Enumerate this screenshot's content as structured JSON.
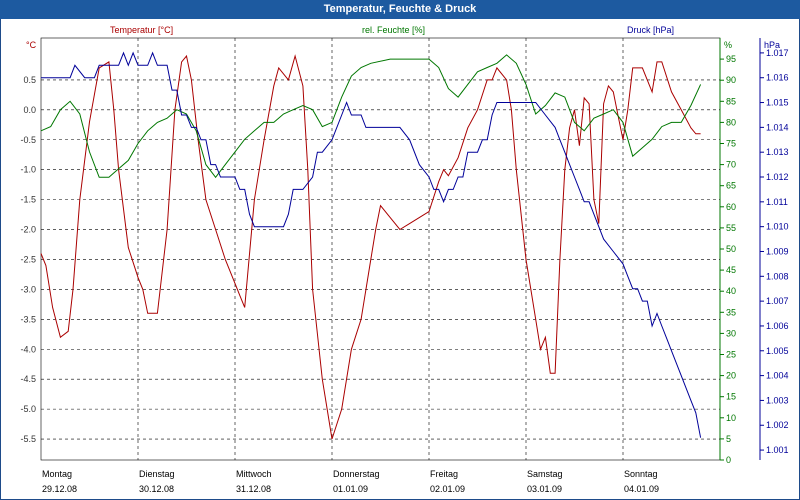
{
  "window": {
    "title": "Temperatur, Feuchte & Druck"
  },
  "chart_data": {
    "type": "line",
    "title": "Temperatur, Feuchte & Druck",
    "x_range": [
      0,
      7
    ],
    "x_days": [
      {
        "day": "Montag",
        "date": "29.12.08"
      },
      {
        "day": "Dienstag",
        "date": "30.12.08"
      },
      {
        "day": "Mittwoch",
        "date": "31.12.08"
      },
      {
        "day": "Donnerstag",
        "date": "01.01.09"
      },
      {
        "day": "Freitag",
        "date": "02.01.09"
      },
      {
        "day": "Samstag",
        "date": "03.01.09"
      },
      {
        "day": "Sonntag",
        "date": "04.01.09"
      }
    ],
    "axes": {
      "temperature": {
        "unit": "°C",
        "min": -5.85,
        "max": 1.2,
        "ticks": [
          "0.5",
          "0.0",
          "-0.5",
          "-1.0",
          "-1.5",
          "-2.0",
          "-2.5",
          "-3.0",
          "-3.5",
          "-4.0",
          "-4.5",
          "-5.0",
          "-5.5"
        ]
      },
      "humidity": {
        "unit": "%",
        "min": 0,
        "max": 100,
        "ticks": [
          "95",
          "90",
          "85",
          "80",
          "75",
          "70",
          "65",
          "60",
          "55",
          "50",
          "45",
          "40",
          "35",
          "30",
          "25",
          "20",
          "15",
          "10",
          "5",
          "0"
        ]
      },
      "pressure": {
        "unit": "hPa",
        "min": 1000.6,
        "max": 1017.6,
        "ticks": [
          "1.017",
          "1.016",
          "1.015",
          "1.014",
          "1.013",
          "1.012",
          "1.011",
          "1.010",
          "1.009",
          "1.008",
          "1.007",
          "1.006",
          "1.005",
          "1.004",
          "1.003",
          "1.002",
          "1.001"
        ]
      }
    },
    "colors": {
      "temperature": "#aa0000",
      "humidity": "#007700",
      "pressure": "#000099",
      "grid": "#000000",
      "title_bar": "#1d5aa0"
    },
    "series": [
      {
        "name": "Temperatur [°C]",
        "axis": "temperature",
        "x": [
          0,
          0.05,
          0.12,
          0.2,
          0.28,
          0.33,
          0.4,
          0.5,
          0.6,
          0.7,
          0.75,
          0.8,
          0.9,
          1.0,
          1.05,
          1.1,
          1.2,
          1.3,
          1.38,
          1.45,
          1.5,
          1.55,
          1.62,
          1.7,
          1.8,
          1.9,
          2.0,
          2.05,
          2.1,
          2.2,
          2.3,
          2.4,
          2.45,
          2.55,
          2.62,
          2.7,
          2.75,
          2.8,
          2.9,
          3.0,
          3.1,
          3.2,
          3.3,
          3.4,
          3.45,
          3.5,
          3.6,
          3.7,
          3.8,
          3.9,
          4.0,
          4.1,
          4.15,
          4.2,
          4.3,
          4.4,
          4.5,
          4.6,
          4.65,
          4.7,
          4.8,
          4.85,
          4.9,
          5.0,
          5.1,
          5.15,
          5.2,
          5.25,
          5.3,
          5.35,
          5.4,
          5.45,
          5.5,
          5.55,
          5.6,
          5.65,
          5.7,
          5.75,
          5.8,
          5.85,
          5.9,
          5.95,
          6.0,
          6.05,
          6.1,
          6.2,
          6.3,
          6.35,
          6.4,
          6.5,
          6.6,
          6.7,
          6.75,
          6.8
        ],
        "values": [
          -2.4,
          -2.6,
          -3.3,
          -3.8,
          -3.7,
          -3.0,
          -1.5,
          -0.2,
          0.7,
          0.8,
          0.0,
          -1.0,
          -2.3,
          -2.8,
          -3.0,
          -3.4,
          -3.4,
          -2.0,
          0.0,
          0.8,
          0.9,
          0.5,
          -0.5,
          -1.5,
          -2.0,
          -2.5,
          -2.9,
          -3.1,
          -3.3,
          -1.5,
          -0.5,
          0.4,
          0.7,
          0.5,
          0.9,
          0.4,
          -1.0,
          -3.0,
          -4.5,
          -5.5,
          -5.0,
          -4.0,
          -3.5,
          -2.5,
          -2.0,
          -1.6,
          -1.8,
          -2.0,
          -1.9,
          -1.8,
          -1.7,
          -1.2,
          -1.0,
          -1.1,
          -0.8,
          -0.3,
          0.0,
          0.5,
          0.5,
          0.7,
          0.5,
          0.0,
          -1.0,
          -2.5,
          -3.5,
          -4.0,
          -3.8,
          -4.4,
          -4.4,
          -2.5,
          -1.0,
          -0.3,
          0.0,
          -0.6,
          0.2,
          0.1,
          -1.5,
          -1.9,
          0.1,
          0.4,
          0.3,
          -0.1,
          -0.5,
          0.0,
          0.7,
          0.7,
          0.3,
          0.8,
          0.8,
          0.3,
          0.0,
          -0.3,
          -0.4,
          -0.4
        ]
      },
      {
        "name": "rel. Feuchte [%]",
        "axis": "humidity",
        "x": [
          0,
          0.1,
          0.2,
          0.3,
          0.4,
          0.5,
          0.6,
          0.7,
          0.8,
          0.9,
          1.0,
          1.1,
          1.2,
          1.3,
          1.4,
          1.5,
          1.6,
          1.7,
          1.8,
          1.9,
          2.0,
          2.1,
          2.2,
          2.3,
          2.4,
          2.5,
          2.6,
          2.7,
          2.8,
          2.9,
          3.0,
          3.1,
          3.2,
          3.3,
          3.4,
          3.6,
          3.8,
          4.0,
          4.1,
          4.2,
          4.3,
          4.4,
          4.5,
          4.6,
          4.7,
          4.8,
          4.9,
          5.0,
          5.1,
          5.2,
          5.3,
          5.4,
          5.5,
          5.6,
          5.7,
          5.8,
          5.9,
          6.0,
          6.1,
          6.2,
          6.3,
          6.4,
          6.5,
          6.6,
          6.7,
          6.8
        ],
        "values": [
          78,
          79,
          83,
          85,
          82,
          73,
          67,
          67,
          69,
          71,
          75,
          78,
          80,
          81,
          83,
          82,
          78,
          70,
          67,
          70,
          73,
          76,
          78,
          80,
          80,
          82,
          83,
          84,
          83,
          79,
          80,
          86,
          91,
          93,
          94,
          95,
          95,
          95,
          93,
          88,
          86,
          89,
          92,
          93,
          94,
          96,
          94,
          89,
          82,
          84,
          87,
          86,
          80,
          78,
          81,
          82,
          83,
          80,
          72,
          74,
          76,
          79,
          80,
          80,
          84,
          89
        ]
      },
      {
        "name": "Druck [hPa]",
        "axis": "pressure",
        "x": [
          0,
          0.15,
          0.3,
          0.35,
          0.45,
          0.55,
          0.6,
          0.7,
          0.8,
          0.85,
          0.9,
          0.95,
          1.0,
          1.05,
          1.1,
          1.15,
          1.2,
          1.25,
          1.3,
          1.35,
          1.4,
          1.45,
          1.5,
          1.55,
          1.6,
          1.65,
          1.7,
          1.75,
          1.8,
          1.85,
          1.9,
          1.95,
          2.0,
          2.05,
          2.1,
          2.15,
          2.2,
          2.3,
          2.4,
          2.5,
          2.55,
          2.6,
          2.7,
          2.8,
          2.85,
          2.9,
          3.0,
          3.1,
          3.15,
          3.2,
          3.3,
          3.35,
          3.4,
          3.45,
          3.5,
          3.55,
          3.6,
          3.7,
          3.8,
          3.9,
          4.0,
          4.05,
          4.1,
          4.15,
          4.2,
          4.25,
          4.3,
          4.35,
          4.4,
          4.5,
          4.55,
          4.6,
          4.65,
          4.7,
          4.8,
          4.9,
          5.0,
          5.1,
          5.2,
          5.3,
          5.35,
          5.4,
          5.45,
          5.5,
          5.55,
          5.6,
          5.65,
          5.7,
          5.75,
          5.8,
          5.9,
          6.0,
          6.05,
          6.1,
          6.15,
          6.2,
          6.25,
          6.3,
          6.35,
          6.4,
          6.45,
          6.5,
          6.6,
          6.7,
          6.75,
          6.8
        ],
        "values": [
          1016.0,
          1016.0,
          1016.0,
          1016.5,
          1016.0,
          1016.0,
          1016.5,
          1016.5,
          1016.5,
          1017.0,
          1016.5,
          1017.0,
          1016.5,
          1016.5,
          1016.5,
          1017.0,
          1016.5,
          1016.5,
          1016.5,
          1015.5,
          1015.5,
          1014.5,
          1014.5,
          1014.0,
          1014.0,
          1013.5,
          1013.5,
          1012.5,
          1012.5,
          1012.0,
          1012.0,
          1012.0,
          1012.0,
          1011.5,
          1011.5,
          1010.5,
          1010.0,
          1010.0,
          1010.0,
          1010.0,
          1010.5,
          1011.5,
          1011.5,
          1012.0,
          1013.0,
          1013.0,
          1013.5,
          1014.5,
          1015.0,
          1014.5,
          1014.5,
          1014.0,
          1014.0,
          1014.0,
          1014.0,
          1014.0,
          1014.0,
          1014.0,
          1013.5,
          1012.5,
          1012.0,
          1011.5,
          1011.5,
          1011.0,
          1011.5,
          1011.5,
          1012.0,
          1012.0,
          1013.0,
          1013.0,
          1013.5,
          1013.5,
          1014.5,
          1015.0,
          1015.0,
          1015.0,
          1015.0,
          1015.0,
          1014.5,
          1014.0,
          1013.5,
          1013.0,
          1012.5,
          1012.0,
          1011.5,
          1011.0,
          1011.0,
          1010.5,
          1010.0,
          1009.5,
          1009.0,
          1008.5,
          1008.0,
          1007.5,
          1007.5,
          1007.0,
          1007.0,
          1006.0,
          1006.5,
          1006.0,
          1005.5,
          1005.0,
          1004.0,
          1003.0,
          1002.5,
          1001.5
        ]
      }
    ]
  }
}
